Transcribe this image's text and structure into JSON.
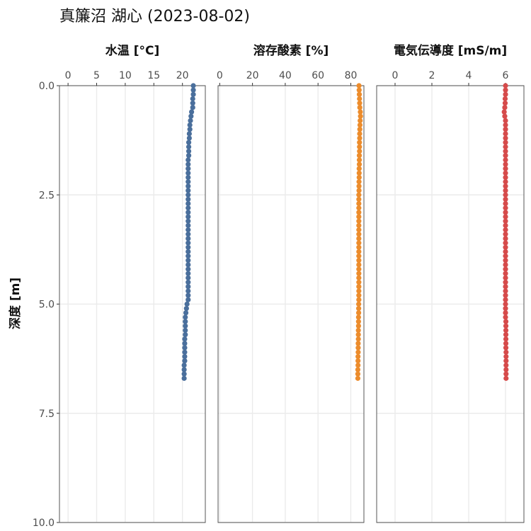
{
  "title": "真簾沼 湖心 (2023-08-02)",
  "chart_data": {
    "type": "scatter",
    "title": "真簾沼 湖心 (2023-08-02)",
    "ylabel": "深度 [m]",
    "ylim": [
      0,
      10
    ],
    "y_reversed": true,
    "y_ticks": [
      0,
      2.5,
      5,
      7.5,
      10
    ],
    "y_tick_labels": [
      "0.0",
      "2.5",
      "5.0",
      "7.5",
      "10.0"
    ],
    "grid": true,
    "panels": [
      {
        "name": "temperature",
        "xlabel": "水温 [°C]",
        "xlim": [
          -1.5,
          24
        ],
        "x_ticks": [
          0,
          5,
          10,
          15,
          20
        ],
        "x_tick_labels": [
          "0",
          "5",
          "10",
          "15",
          "20"
        ],
        "color": "#4a6f9c",
        "points": [
          [
            21.9,
            0.0
          ],
          [
            21.9,
            0.1
          ],
          [
            21.9,
            0.2
          ],
          [
            21.8,
            0.3
          ],
          [
            21.8,
            0.4
          ],
          [
            21.8,
            0.5
          ],
          [
            21.6,
            0.6
          ],
          [
            21.5,
            0.7
          ],
          [
            21.4,
            0.8
          ],
          [
            21.3,
            0.9
          ],
          [
            21.3,
            1.0
          ],
          [
            21.2,
            1.1
          ],
          [
            21.2,
            1.2
          ],
          [
            21.1,
            1.3
          ],
          [
            21.1,
            1.4
          ],
          [
            21.1,
            1.5
          ],
          [
            21.1,
            1.6
          ],
          [
            21.0,
            1.7
          ],
          [
            21.0,
            1.8
          ],
          [
            21.0,
            1.9
          ],
          [
            21.0,
            2.0
          ],
          [
            21.0,
            2.1
          ],
          [
            21.0,
            2.2
          ],
          [
            21.0,
            2.3
          ],
          [
            21.0,
            2.4
          ],
          [
            21.0,
            2.5
          ],
          [
            21.0,
            2.6
          ],
          [
            21.0,
            2.7
          ],
          [
            21.0,
            2.8
          ],
          [
            21.0,
            2.9
          ],
          [
            21.0,
            3.0
          ],
          [
            21.0,
            3.1
          ],
          [
            21.0,
            3.2
          ],
          [
            21.0,
            3.3
          ],
          [
            21.0,
            3.4
          ],
          [
            21.0,
            3.5
          ],
          [
            21.0,
            3.6
          ],
          [
            21.0,
            3.7
          ],
          [
            21.0,
            3.8
          ],
          [
            21.0,
            3.9
          ],
          [
            21.0,
            4.0
          ],
          [
            21.0,
            4.1
          ],
          [
            21.0,
            4.2
          ],
          [
            21.0,
            4.3
          ],
          [
            21.0,
            4.4
          ],
          [
            21.0,
            4.5
          ],
          [
            21.0,
            4.6
          ],
          [
            21.0,
            4.7
          ],
          [
            21.0,
            4.8
          ],
          [
            21.0,
            4.9
          ],
          [
            20.8,
            5.0
          ],
          [
            20.7,
            5.1
          ],
          [
            20.6,
            5.2
          ],
          [
            20.5,
            5.3
          ],
          [
            20.5,
            5.4
          ],
          [
            20.5,
            5.5
          ],
          [
            20.5,
            5.6
          ],
          [
            20.5,
            5.7
          ],
          [
            20.4,
            5.8
          ],
          [
            20.4,
            5.9
          ],
          [
            20.4,
            6.0
          ],
          [
            20.4,
            6.1
          ],
          [
            20.4,
            6.2
          ],
          [
            20.4,
            6.3
          ],
          [
            20.3,
            6.4
          ],
          [
            20.3,
            6.5
          ],
          [
            20.3,
            6.6
          ],
          [
            20.3,
            6.7
          ]
        ]
      },
      {
        "name": "dissolved-oxygen",
        "xlabel": "溶存酸素 [%]",
        "xlim": [
          -1,
          88
        ],
        "x_ticks": [
          0,
          20,
          40,
          60,
          80
        ],
        "x_tick_labels": [
          "0",
          "20",
          "40",
          "60",
          "80"
        ],
        "color": "#ec8c2c",
        "points": [
          [
            85.0,
            0.0
          ],
          [
            85.1,
            0.1
          ],
          [
            85.2,
            0.2
          ],
          [
            85.3,
            0.3
          ],
          [
            85.4,
            0.4
          ],
          [
            85.5,
            0.5
          ],
          [
            85.8,
            0.6
          ],
          [
            85.9,
            0.7
          ],
          [
            85.7,
            0.8
          ],
          [
            85.6,
            0.9
          ],
          [
            85.5,
            1.0
          ],
          [
            85.4,
            1.1
          ],
          [
            85.4,
            1.2
          ],
          [
            85.3,
            1.3
          ],
          [
            85.3,
            1.4
          ],
          [
            85.3,
            1.5
          ],
          [
            85.2,
            1.6
          ],
          [
            85.2,
            1.7
          ],
          [
            85.2,
            1.8
          ],
          [
            85.1,
            1.9
          ],
          [
            85.1,
            2.0
          ],
          [
            85.1,
            2.1
          ],
          [
            85.0,
            2.2
          ],
          [
            85.0,
            2.3
          ],
          [
            85.0,
            2.4
          ],
          [
            84.9,
            2.5
          ],
          [
            84.9,
            2.6
          ],
          [
            84.9,
            2.7
          ],
          [
            84.9,
            2.8
          ],
          [
            84.9,
            2.9
          ],
          [
            84.9,
            3.0
          ],
          [
            84.9,
            3.1
          ],
          [
            84.9,
            3.2
          ],
          [
            84.9,
            3.3
          ],
          [
            84.9,
            3.4
          ],
          [
            84.9,
            3.5
          ],
          [
            84.9,
            3.6
          ],
          [
            84.9,
            3.7
          ],
          [
            84.9,
            3.8
          ],
          [
            84.9,
            3.9
          ],
          [
            84.9,
            4.0
          ],
          [
            84.9,
            4.1
          ],
          [
            84.9,
            4.2
          ],
          [
            84.9,
            4.3
          ],
          [
            84.9,
            4.4
          ],
          [
            84.9,
            4.5
          ],
          [
            84.9,
            4.6
          ],
          [
            84.9,
            4.7
          ],
          [
            84.9,
            4.8
          ],
          [
            84.9,
            4.9
          ],
          [
            84.8,
            5.0
          ],
          [
            84.8,
            5.1
          ],
          [
            84.8,
            5.2
          ],
          [
            84.7,
            5.3
          ],
          [
            84.7,
            5.4
          ],
          [
            84.7,
            5.5
          ],
          [
            84.6,
            5.6
          ],
          [
            84.6,
            5.7
          ],
          [
            84.6,
            5.8
          ],
          [
            84.5,
            5.9
          ],
          [
            84.5,
            6.0
          ],
          [
            84.5,
            6.1
          ],
          [
            84.4,
            6.2
          ],
          [
            84.4,
            6.3
          ],
          [
            84.4,
            6.4
          ],
          [
            84.3,
            6.5
          ],
          [
            84.3,
            6.6
          ],
          [
            84.3,
            6.7
          ]
        ]
      },
      {
        "name": "conductivity",
        "xlabel": "電気伝導度 [mS/m]",
        "xlim": [
          -1,
          7
        ],
        "x_ticks": [
          0,
          2,
          4,
          6
        ],
        "x_tick_labels": [
          "0",
          "2",
          "4",
          "6"
        ],
        "color": "#d64b4b",
        "points": [
          [
            6.0,
            0.0
          ],
          [
            6.0,
            0.1
          ],
          [
            6.0,
            0.2
          ],
          [
            5.98,
            0.3
          ],
          [
            5.98,
            0.4
          ],
          [
            5.96,
            0.5
          ],
          [
            5.93,
            0.6
          ],
          [
            5.96,
            0.7
          ],
          [
            6.0,
            0.8
          ],
          [
            6.0,
            0.9
          ],
          [
            6.0,
            1.0
          ],
          [
            6.0,
            1.1
          ],
          [
            6.0,
            1.2
          ],
          [
            6.0,
            1.3
          ],
          [
            6.0,
            1.4
          ],
          [
            6.0,
            1.5
          ],
          [
            6.0,
            1.6
          ],
          [
            6.0,
            1.7
          ],
          [
            6.0,
            1.8
          ],
          [
            6.0,
            1.9
          ],
          [
            6.0,
            2.0
          ],
          [
            6.0,
            2.1
          ],
          [
            6.0,
            2.2
          ],
          [
            6.0,
            2.3
          ],
          [
            6.0,
            2.4
          ],
          [
            6.0,
            2.5
          ],
          [
            6.0,
            2.6
          ],
          [
            6.0,
            2.7
          ],
          [
            6.0,
            2.8
          ],
          [
            6.0,
            2.9
          ],
          [
            6.0,
            3.0
          ],
          [
            6.0,
            3.1
          ],
          [
            6.0,
            3.2
          ],
          [
            6.0,
            3.3
          ],
          [
            6.0,
            3.4
          ],
          [
            6.0,
            3.5
          ],
          [
            6.0,
            3.6
          ],
          [
            6.0,
            3.7
          ],
          [
            6.0,
            3.8
          ],
          [
            6.0,
            3.9
          ],
          [
            6.0,
            4.0
          ],
          [
            6.0,
            4.1
          ],
          [
            6.0,
            4.2
          ],
          [
            6.0,
            4.3
          ],
          [
            6.0,
            4.4
          ],
          [
            6.0,
            4.5
          ],
          [
            6.0,
            4.6
          ],
          [
            6.0,
            4.7
          ],
          [
            6.0,
            4.8
          ],
          [
            6.0,
            4.9
          ],
          [
            6.0,
            5.0
          ],
          [
            6.0,
            5.1
          ],
          [
            6.0,
            5.2
          ],
          [
            6.0,
            5.3
          ],
          [
            6.02,
            5.4
          ],
          [
            6.02,
            5.5
          ],
          [
            6.02,
            5.6
          ],
          [
            6.02,
            5.7
          ],
          [
            6.02,
            5.8
          ],
          [
            6.02,
            5.9
          ],
          [
            6.02,
            6.0
          ],
          [
            6.03,
            6.1
          ],
          [
            6.03,
            6.2
          ],
          [
            6.03,
            6.3
          ],
          [
            6.03,
            6.4
          ],
          [
            6.03,
            6.5
          ],
          [
            6.03,
            6.6
          ],
          [
            6.03,
            6.7
          ]
        ]
      }
    ]
  }
}
